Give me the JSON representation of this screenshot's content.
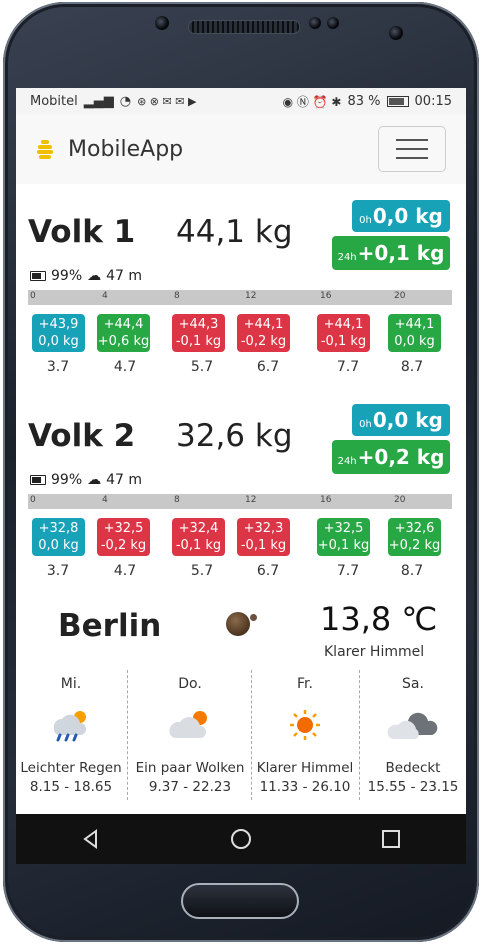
{
  "status": {
    "carrier": "Mobitel",
    "battery": "83 %",
    "time": "00:15"
  },
  "app": {
    "title": "MobileApp"
  },
  "volks": [
    {
      "name": "Volk 1",
      "weight": "44,1 kg",
      "d0_label": "0h",
      "d0_value": "0,0 kg",
      "d24_label": "24h",
      "d24_value": "+0,1 kg",
      "battery": "99%",
      "signal": "47 m",
      "hours": [
        "0",
        "4",
        "8",
        "12",
        "16",
        "20"
      ],
      "boxes": [
        {
          "w": "+43,9",
          "d": "0,0 kg",
          "color": "teal"
        },
        {
          "w": "+44,4",
          "d": "+0,6 kg",
          "color": "green"
        },
        {
          "w": "+44,3",
          "d": "-0,1 kg",
          "color": "red"
        },
        {
          "w": "+44,1",
          "d": "-0,2 kg",
          "color": "red"
        },
        {
          "w": "+44,1",
          "d": "-0,1 kg",
          "color": "red"
        },
        {
          "w": "+44,1",
          "d": "0,0 kg",
          "color": "green"
        }
      ],
      "temps": [
        "3.7",
        "4.7",
        "5.7",
        "6.7",
        "7.7",
        "8.7"
      ]
    },
    {
      "name": "Volk 2",
      "weight": "32,6 kg",
      "d0_label": "0h",
      "d0_value": "0,0 kg",
      "d24_label": "24h",
      "d24_value": "+0,2 kg",
      "battery": "99%",
      "signal": "47 m",
      "hours": [
        "0",
        "4",
        "8",
        "12",
        "16",
        "20"
      ],
      "boxes": [
        {
          "w": "+32,8",
          "d": "0,0 kg",
          "color": "teal"
        },
        {
          "w": "+32,5",
          "d": "-0,2 kg",
          "color": "red"
        },
        {
          "w": "+32,4",
          "d": "-0,1 kg",
          "color": "red"
        },
        {
          "w": "+32,3",
          "d": "-0,1 kg",
          "color": "red"
        },
        {
          "w": "+32,5",
          "d": "+0,1 kg",
          "color": "green"
        },
        {
          "w": "+32,6",
          "d": "+0,2 kg",
          "color": "green"
        }
      ],
      "temps": [
        "3.7",
        "4.7",
        "5.7",
        "6.7",
        "7.7",
        "8.7"
      ]
    }
  ],
  "weather": {
    "city": "Berlin",
    "temperature": "13,8 ℃",
    "condition": "Klarer Himmel",
    "days": [
      {
        "day": "Mi.",
        "desc": "Leichter Regen",
        "temps": "8.15 - 18.65",
        "icon": "rain-sun-icon"
      },
      {
        "day": "Do.",
        "desc": "Ein paar Wolken",
        "temps": "9.37 - 22.23",
        "icon": "cloud-sun-icon"
      },
      {
        "day": "Fr.",
        "desc": "Klarer Himmel",
        "temps": "11.33 - 26.10",
        "icon": "sun-icon"
      },
      {
        "day": "Sa.",
        "desc": "Bedeckt",
        "temps": "15.55 - 23.15",
        "icon": "cloud-icon"
      }
    ]
  },
  "colors": {
    "teal": "#17a2b8",
    "green": "#28a745",
    "red": "#dc3545"
  }
}
